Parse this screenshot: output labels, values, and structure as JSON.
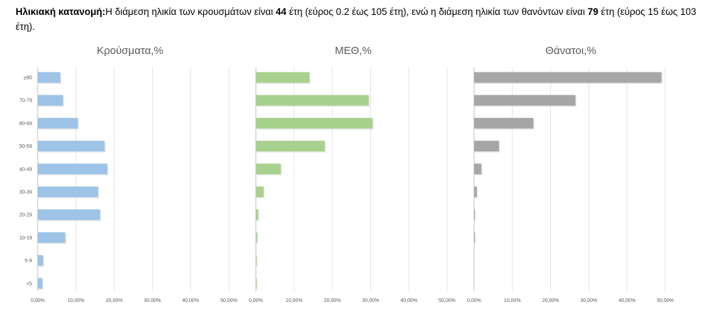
{
  "intro": {
    "bold_label": "Ηλικιακή κατανομή",
    "text_part1": "Η διάμεση ηλικία των κρουσμάτων είναι ",
    "cases_median": "44",
    "text_part2": " έτη (εύρος 0.2 έως 105 έτη), ενώ η διάμεση ηλικία των θανόντων είναι ",
    "deaths_median": "79",
    "text_part3": " έτη (εύρος 15 έως 103 έτη)."
  },
  "chart_data": [
    {
      "type": "bar",
      "orientation": "horizontal",
      "title": "Κρούσματα,%",
      "color": "#9dc3e6",
      "categories": [
        "≥80",
        "70-79",
        "60-69",
        "50-59",
        "40-49",
        "30-39",
        "20-29",
        "10-19",
        "5-9",
        "<5"
      ],
      "values": [
        5.9,
        6.6,
        10.5,
        17.5,
        18.2,
        15.8,
        16.3,
        7.2,
        1.4,
        1.2
      ],
      "xlim": [
        0,
        50
      ],
      "ticks": [
        "0,00%",
        "10,00%",
        "20,00%",
        "30,00%",
        "40,00%",
        "50,00%"
      ],
      "grid": true
    },
    {
      "type": "bar",
      "orientation": "horizontal",
      "title": "ΜΕΘ,%",
      "color": "#a9d18e",
      "categories": [
        "≥80",
        "70-79",
        "60-69",
        "50-59",
        "40-49",
        "30-39",
        "20-29",
        "10-19",
        "5-9",
        "<5"
      ],
      "values": [
        14.0,
        29.5,
        30.5,
        18.0,
        6.5,
        2.0,
        0.6,
        0.3,
        0.2,
        0.2
      ],
      "xlim": [
        0,
        50
      ],
      "ticks": [
        "0,00%",
        "10,00%",
        "20,00%",
        "30,00%",
        "40,00%",
        "50,00%"
      ],
      "grid": true
    },
    {
      "type": "bar",
      "orientation": "horizontal",
      "title": "Θάνατοι,%",
      "color": "#a6a6a6",
      "categories": [
        "≥80",
        "70-79",
        "60-69",
        "50-59",
        "40-49",
        "30-39",
        "20-29",
        "10-19",
        "5-9",
        "<5"
      ],
      "values": [
        49.0,
        26.5,
        15.5,
        6.5,
        1.9,
        0.7,
        0.2,
        0.2,
        0.0,
        0.0
      ],
      "xlim": [
        0,
        50
      ],
      "ticks": [
        "0,00%",
        "10,00%",
        "20,00%",
        "30,00%",
        "40,00%",
        "50,00%"
      ],
      "grid": true
    }
  ]
}
